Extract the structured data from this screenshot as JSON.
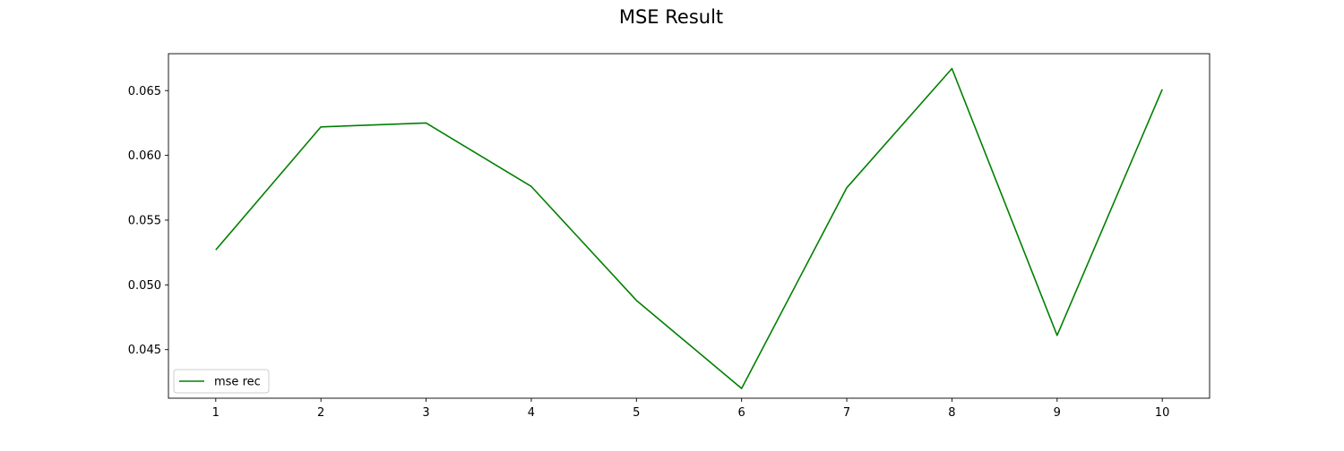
{
  "chart_data": {
    "type": "line",
    "title": "MSE Result",
    "xlabel": "",
    "ylabel": "",
    "x": [
      1,
      2,
      3,
      4,
      5,
      6,
      7,
      8,
      9,
      10
    ],
    "xlim": [
      0.55,
      10.45
    ],
    "ylim": [
      0.04125,
      0.06785
    ],
    "x_ticks": [
      "1",
      "2",
      "3",
      "4",
      "5",
      "6",
      "7",
      "8",
      "9",
      "10"
    ],
    "y_ticks": [
      0.045,
      0.05,
      0.055,
      0.06,
      0.065
    ],
    "y_tick_labels": [
      "0.045",
      "0.050",
      "0.055",
      "0.060",
      "0.065"
    ],
    "grid": false,
    "legend_position": "lower-left",
    "series": [
      {
        "name": "mse rec",
        "color": "#008000",
        "values": [
          0.0527,
          0.0622,
          0.0625,
          0.0576,
          0.0488,
          0.042,
          0.0575,
          0.0667,
          0.0461,
          0.0651
        ]
      }
    ]
  }
}
